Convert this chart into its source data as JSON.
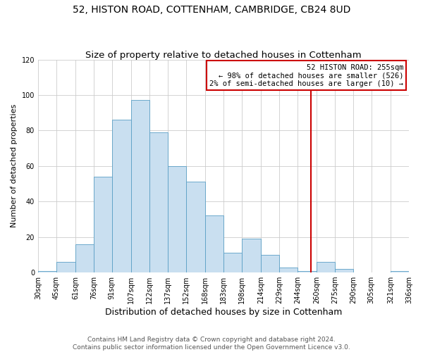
{
  "title": "52, HISTON ROAD, COTTENHAM, CAMBRIDGE, CB24 8UD",
  "subtitle": "Size of property relative to detached houses in Cottenham",
  "xlabel": "Distribution of detached houses by size in Cottenham",
  "ylabel": "Number of detached properties",
  "bar_left_edges": [
    30,
    45,
    61,
    76,
    91,
    107,
    122,
    137,
    152,
    168,
    183,
    198,
    214,
    229,
    244,
    260,
    275,
    290,
    305,
    321
  ],
  "bar_widths": [
    15,
    16,
    15,
    15,
    16,
    15,
    15,
    15,
    16,
    15,
    15,
    16,
    15,
    15,
    16,
    15,
    15,
    15,
    16,
    15
  ],
  "bar_heights": [
    1,
    6,
    16,
    54,
    86,
    97,
    79,
    60,
    51,
    32,
    11,
    19,
    10,
    3,
    1,
    6,
    2,
    0,
    0,
    1
  ],
  "tick_labels": [
    "30sqm",
    "45sqm",
    "61sqm",
    "76sqm",
    "91sqm",
    "107sqm",
    "122sqm",
    "137sqm",
    "152sqm",
    "168sqm",
    "183sqm",
    "198sqm",
    "214sqm",
    "229sqm",
    "244sqm",
    "260sqm",
    "275sqm",
    "290sqm",
    "305sqm",
    "321sqm",
    "336sqm"
  ],
  "tick_positions": [
    30,
    45,
    61,
    76,
    91,
    107,
    122,
    137,
    152,
    168,
    183,
    198,
    214,
    229,
    244,
    260,
    275,
    290,
    305,
    321,
    336
  ],
  "bar_facecolor": "#c9dff0",
  "bar_edgecolor": "#5a9fc5",
  "vline_x": 255,
  "vline_color": "#cc0000",
  "annotation_text": "52 HISTON ROAD: 255sqm\n← 98% of detached houses are smaller (526)\n2% of semi-detached houses are larger (10) →",
  "annotation_box_edgecolor": "#cc0000",
  "annotation_box_facecolor": "#ffffff",
  "xlim_left": 30,
  "xlim_right": 336,
  "ylim": [
    0,
    120
  ],
  "yticks": [
    0,
    20,
    40,
    60,
    80,
    100,
    120
  ],
  "background_color": "#ffffff",
  "footer_line1": "Contains HM Land Registry data © Crown copyright and database right 2024.",
  "footer_line2": "Contains public sector information licensed under the Open Government Licence v3.0.",
  "title_fontsize": 10,
  "subtitle_fontsize": 9.5,
  "xlabel_fontsize": 9,
  "ylabel_fontsize": 8,
  "tick_fontsize": 7,
  "footer_fontsize": 6.5,
  "annot_fontsize": 7.5
}
